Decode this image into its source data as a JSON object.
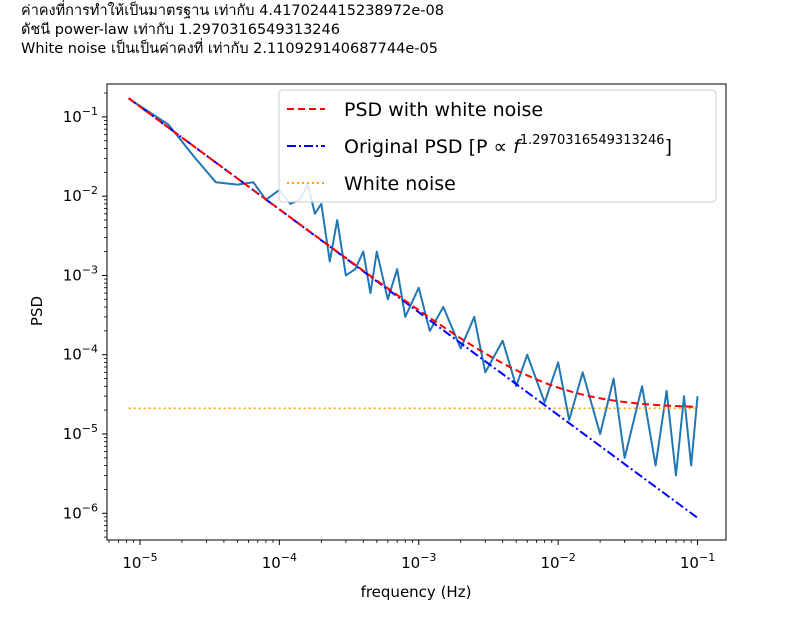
{
  "header": {
    "lines": [
      "ค่าคงที่การทำให้เป็นมาตรฐาน เท่ากับ 4.417024415238972e-08",
      "ดัชนี power-law เท่ากับ 1.2970316549313246",
      "White noise เป็นเป็นค่าคงที่ เท่ากับ 2.110929140687744e-05"
    ]
  },
  "chart_data": {
    "type": "line",
    "xlabel": "frequency (Hz)",
    "ylabel": "PSD",
    "xscale": "log",
    "yscale": "log",
    "xlim": [
      5.8e-06,
      0.16
    ],
    "ylim": [
      4.6e-07,
      0.26
    ],
    "x_ticks": [
      {
        "value": 1e-05,
        "base": "10",
        "exp": "−5"
      },
      {
        "value": 0.0001,
        "base": "10",
        "exp": "−4"
      },
      {
        "value": 0.001,
        "base": "10",
        "exp": "−3"
      },
      {
        "value": 0.01,
        "base": "10",
        "exp": "−2"
      },
      {
        "value": 0.1,
        "base": "10",
        "exp": "−1"
      }
    ],
    "y_ticks": [
      {
        "value": 1e-06,
        "base": "10",
        "exp": "−6"
      },
      {
        "value": 1e-05,
        "base": "10",
        "exp": "−5"
      },
      {
        "value": 0.0001,
        "base": "10",
        "exp": "−4"
      },
      {
        "value": 0.001,
        "base": "10",
        "exp": "−3"
      },
      {
        "value": 0.01,
        "base": "10",
        "exp": "−2"
      },
      {
        "value": 0.1,
        "base": "10",
        "exp": "−1"
      }
    ],
    "legend_position": "top-right",
    "model": {
      "normalization": 4.417024415238972e-08,
      "index": 1.2970316549313246,
      "white_noise": 2.110929140687744e-05
    },
    "series": [
      {
        "name": "",
        "style": "solid",
        "color": "#1f77b4",
        "x": [
          8.3e-06,
          1.6e-05,
          2.5e-05,
          3.5e-05,
          5e-05,
          6.5e-05,
          8e-05,
          0.0001,
          0.00012,
          0.00014,
          0.00016,
          0.00018,
          0.0002,
          0.00023,
          0.00026,
          0.0003,
          0.00035,
          0.0004,
          0.00045,
          0.0005,
          0.0006,
          0.0007,
          0.0008,
          0.001,
          0.0012,
          0.0015,
          0.002,
          0.0025,
          0.003,
          0.004,
          0.005,
          0.006,
          0.008,
          0.01,
          0.012,
          0.015,
          0.02,
          0.025,
          0.03,
          0.04,
          0.05,
          0.06,
          0.07,
          0.08,
          0.09,
          0.1
        ],
        "y": [
          0.17,
          0.08,
          0.03,
          0.015,
          0.014,
          0.015,
          0.009,
          0.012,
          0.008,
          0.009,
          0.014,
          0.006,
          0.008,
          0.0015,
          0.005,
          0.001,
          0.0012,
          0.002,
          0.0006,
          0.002,
          0.0005,
          0.0012,
          0.0003,
          0.0007,
          0.0002,
          0.0004,
          0.00012,
          0.0003,
          6e-05,
          0.00015,
          4e-05,
          0.0001,
          2.5e-05,
          8e-05,
          1.5e-05,
          6e-05,
          1e-05,
          5e-05,
          5e-06,
          4e-05,
          4e-06,
          3.5e-05,
          3e-06,
          3e-05,
          4e-06,
          3e-05
        ]
      },
      {
        "name": "PSD with white noise",
        "style": "dashed",
        "color": "#ff0000",
        "x_range": [
          8.3e-06,
          0.1
        ]
      },
      {
        "name": "Original PSD [P ∝ ",
        "name_italic": "f",
        "name_sup": "1.2970316549313246",
        "name_end": "]",
        "style": "dashdot",
        "color": "#0000ff",
        "x_range": [
          8.3e-06,
          0.1
        ]
      },
      {
        "name": "White noise",
        "style": "dotted",
        "color": "#ffa500",
        "x_range": [
          8.3e-06,
          0.1
        ]
      }
    ]
  }
}
